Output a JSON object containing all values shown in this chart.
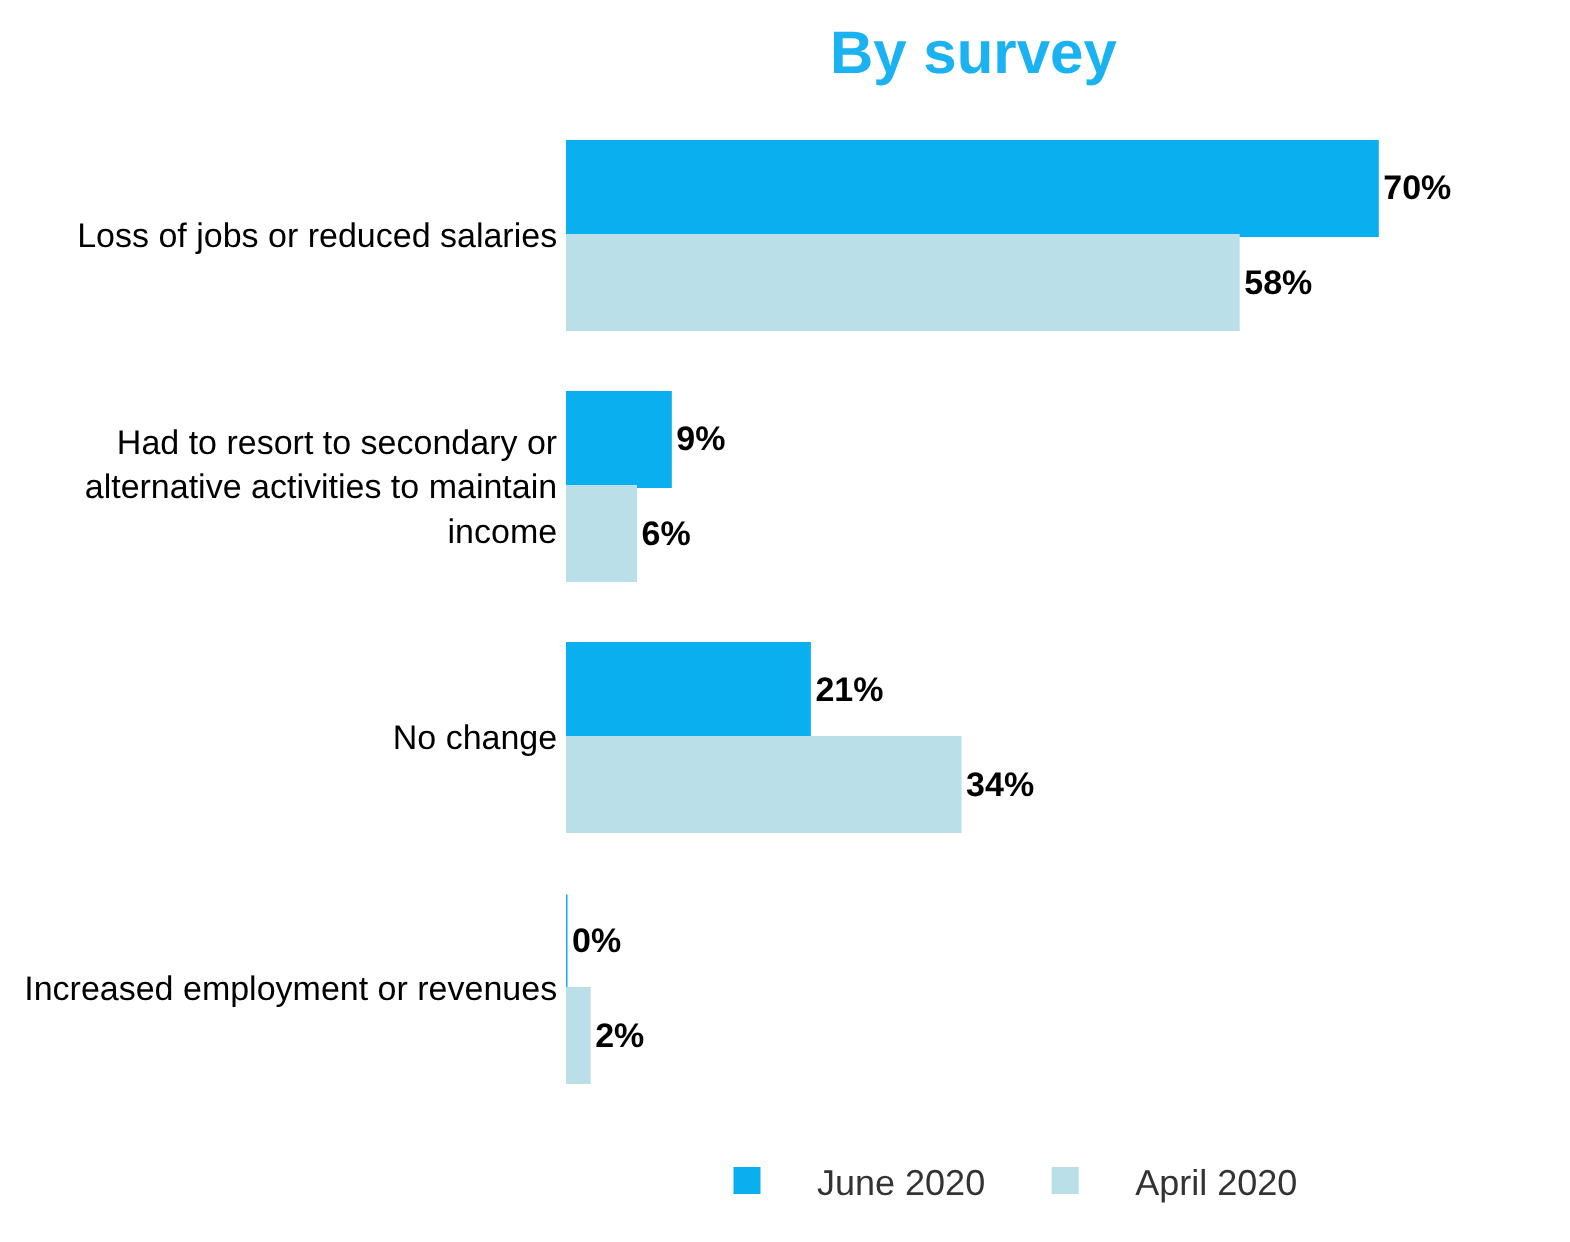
{
  "chart_data": {
    "type": "bar",
    "orientation": "horizontal",
    "title": "By survey",
    "categories": [
      "Loss of jobs or reduced salaries",
      "Had to resort to secondary or alternative activities to maintain income",
      "No change",
      "Increased employment or revenues"
    ],
    "series": [
      {
        "name": "June 2020",
        "color": "#0aafef",
        "values": [
          70,
          9,
          21,
          0
        ],
        "value_labels": [
          "70%",
          "9%",
          "21%",
          "0%"
        ]
      },
      {
        "name": "April 2020",
        "color": "#bbdfe9",
        "values": [
          58,
          6,
          34,
          2
        ],
        "value_labels": [
          "58%",
          "6%",
          "34%",
          "2%"
        ]
      }
    ],
    "legend": "bottom"
  }
}
